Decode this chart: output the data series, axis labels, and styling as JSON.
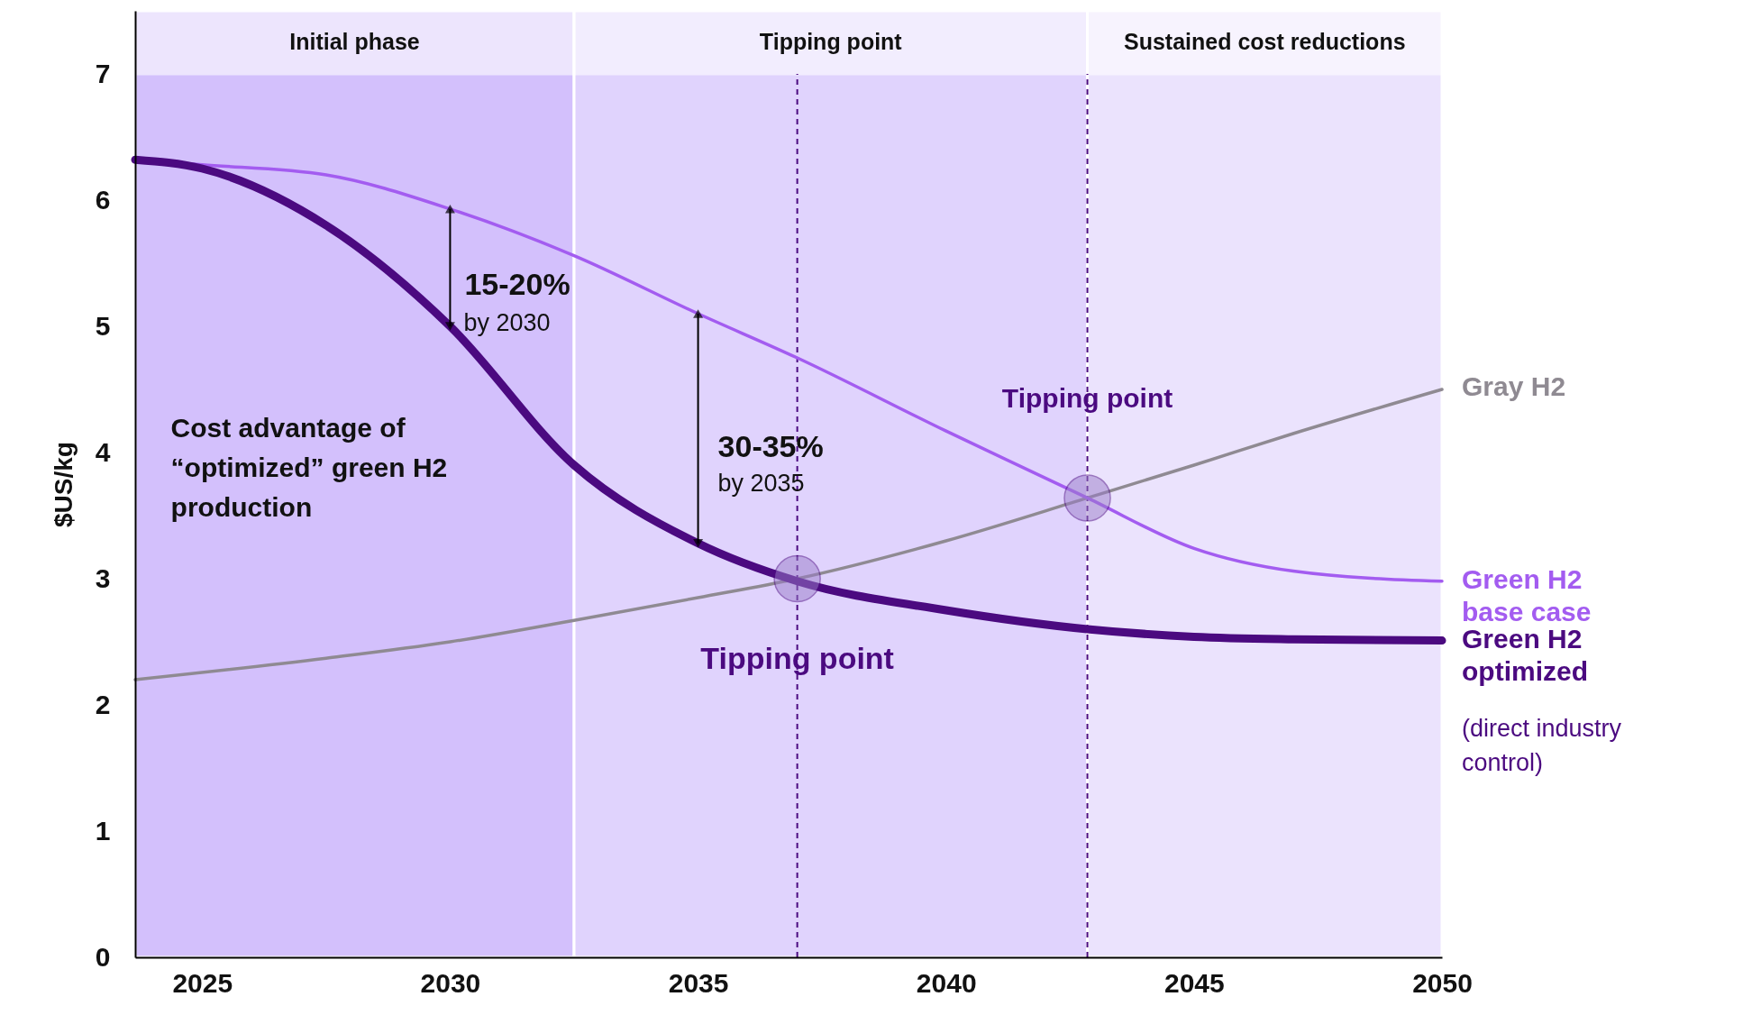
{
  "chart_data": {
    "type": "line",
    "ylabel": "$US/kg",
    "xlim": [
      2023.65,
      2050
    ],
    "xticks": [
      2025,
      2030,
      2035,
      2040,
      2045,
      2050
    ],
    "ylim": [
      0,
      7.5
    ],
    "yticks": [
      0,
      1,
      2,
      3,
      4,
      5,
      6,
      7
    ],
    "grid": false,
    "marker": "none",
    "series": [
      {
        "name": "Gray H2",
        "color": "#8f8a92",
        "x": [
          2023.65,
          2027.5,
          2030,
          2032.5,
          2035,
          2037,
          2040,
          2042.85,
          2045,
          2047,
          2050
        ],
        "values": [
          2.2,
          2.37,
          2.5,
          2.67,
          2.85,
          3.0,
          3.3,
          3.64,
          3.9,
          4.15,
          4.5
        ]
      },
      {
        "name": "Green H2 base case",
        "color": "#a35cf0",
        "x": [
          2023.65,
          2025,
          2027.5,
          2030,
          2032.5,
          2035,
          2037,
          2040,
          2042.85,
          2045,
          2047,
          2050
        ],
        "values": [
          6.32,
          6.28,
          6.2,
          5.93,
          5.56,
          5.1,
          4.75,
          4.17,
          3.64,
          3.24,
          3.06,
          2.98
        ]
      },
      {
        "name": "Green H2 optimized",
        "color": "#4b0a80",
        "x": [
          2023.65,
          2025,
          2027.5,
          2030,
          2032.5,
          2035,
          2037,
          2040,
          2042.85,
          2045,
          2047,
          2050
        ],
        "values": [
          6.32,
          6.25,
          5.8,
          5.0,
          3.9,
          3.28,
          2.98,
          2.75,
          2.6,
          2.54,
          2.52,
          2.51
        ]
      }
    ],
    "bands": [
      {
        "axis": "x",
        "from": 2023.65,
        "to": 2032.5,
        "label": "Initial phase",
        "color": "#d3c0fc"
      },
      {
        "axis": "x",
        "from": 2032.5,
        "to": 2042.85,
        "label": "Tipping point",
        "color": "#e0d3fd"
      },
      {
        "axis": "x",
        "from": 2042.85,
        "to": 2050,
        "label": "Sustained cost reductions",
        "color": "#ebe3fd"
      }
    ],
    "ref_lines": [
      {
        "axis": "x",
        "value": 2037,
        "color": "#4b0a80",
        "line_style": "dashed"
      },
      {
        "axis": "x",
        "value": 2042.85,
        "color": "#4b0a80",
        "line_style": "dashed"
      }
    ],
    "annotations": [
      {
        "text": "15-20%",
        "x": 2030,
        "y": 5.0
      },
      "by 2030",
      {
        "text": "30-35%",
        "x": 2035,
        "y": 3.28
      },
      "by 2035",
      "Cost advantage of “optimized” green H2 production",
      {
        "text": "Tipping point",
        "x": 2037,
        "y": 2.36
      },
      {
        "text": "Tipping point",
        "x": 2042.85,
        "y": 4.42
      },
      {
        "text": "(direct industry control)",
        "x": 2050,
        "y": 1.9
      }
    ]
  }
}
